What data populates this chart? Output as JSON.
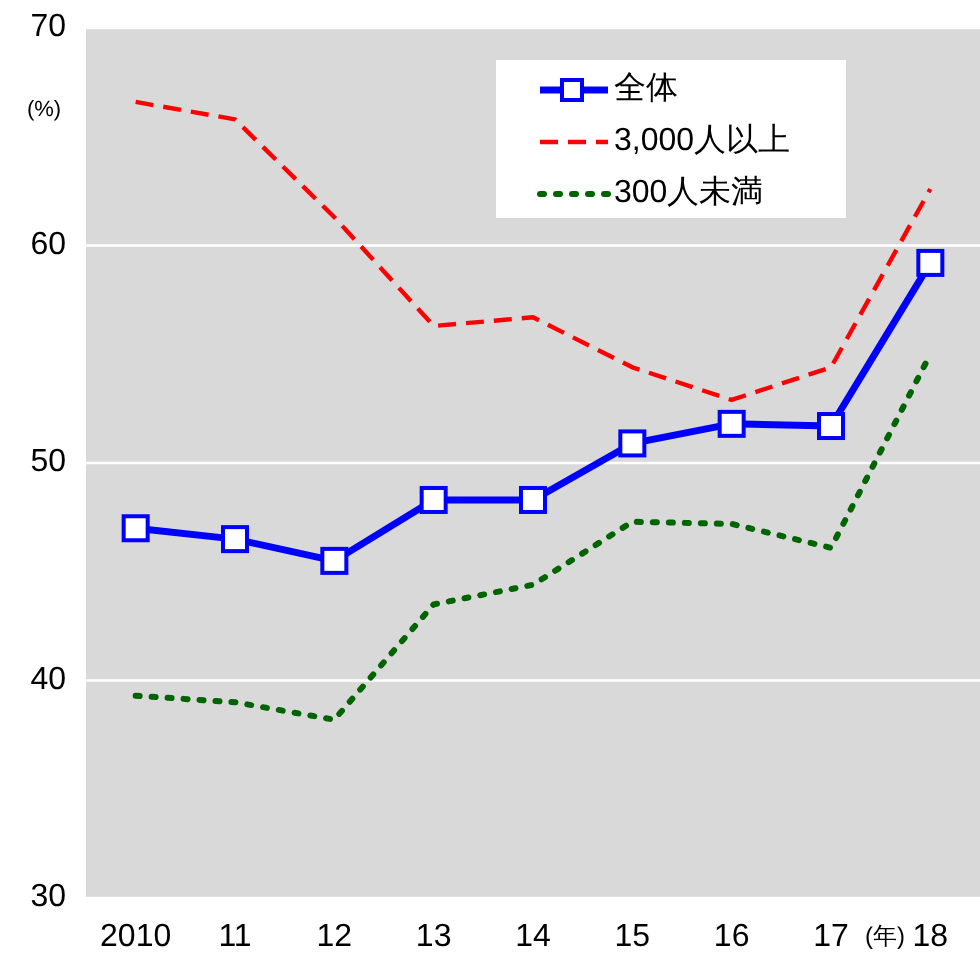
{
  "chart_data": {
    "type": "line",
    "ylabel": "(%)",
    "xlabel": "(年)",
    "categories": [
      "2010",
      "11",
      "12",
      "13",
      "14",
      "15",
      "16",
      "17",
      "18"
    ],
    "series": [
      {
        "name": "全体",
        "color": "#0000ff",
        "marker": "square",
        "line_style": "solid",
        "values": [
          47.0,
          46.5,
          45.5,
          48.3,
          48.3,
          50.9,
          51.8,
          51.7,
          59.2
        ]
      },
      {
        "name": "3,000人以上",
        "color": "#ff0000",
        "marker": "none",
        "line_style": "dashed",
        "values": [
          66.6,
          65.8,
          61.3,
          56.3,
          56.7,
          54.4,
          52.9,
          54.4,
          62.6
        ]
      },
      {
        "name": "300人未満",
        "color": "#006400",
        "marker": "none",
        "line_style": "dotted",
        "values": [
          39.3,
          39.0,
          38.2,
          43.5,
          44.4,
          47.3,
          47.2,
          46.1,
          55.0
        ]
      }
    ],
    "ylim": [
      30,
      70
    ],
    "yticks": [
      30,
      40,
      50,
      60,
      70
    ],
    "grid": "y",
    "legend": "top right"
  }
}
